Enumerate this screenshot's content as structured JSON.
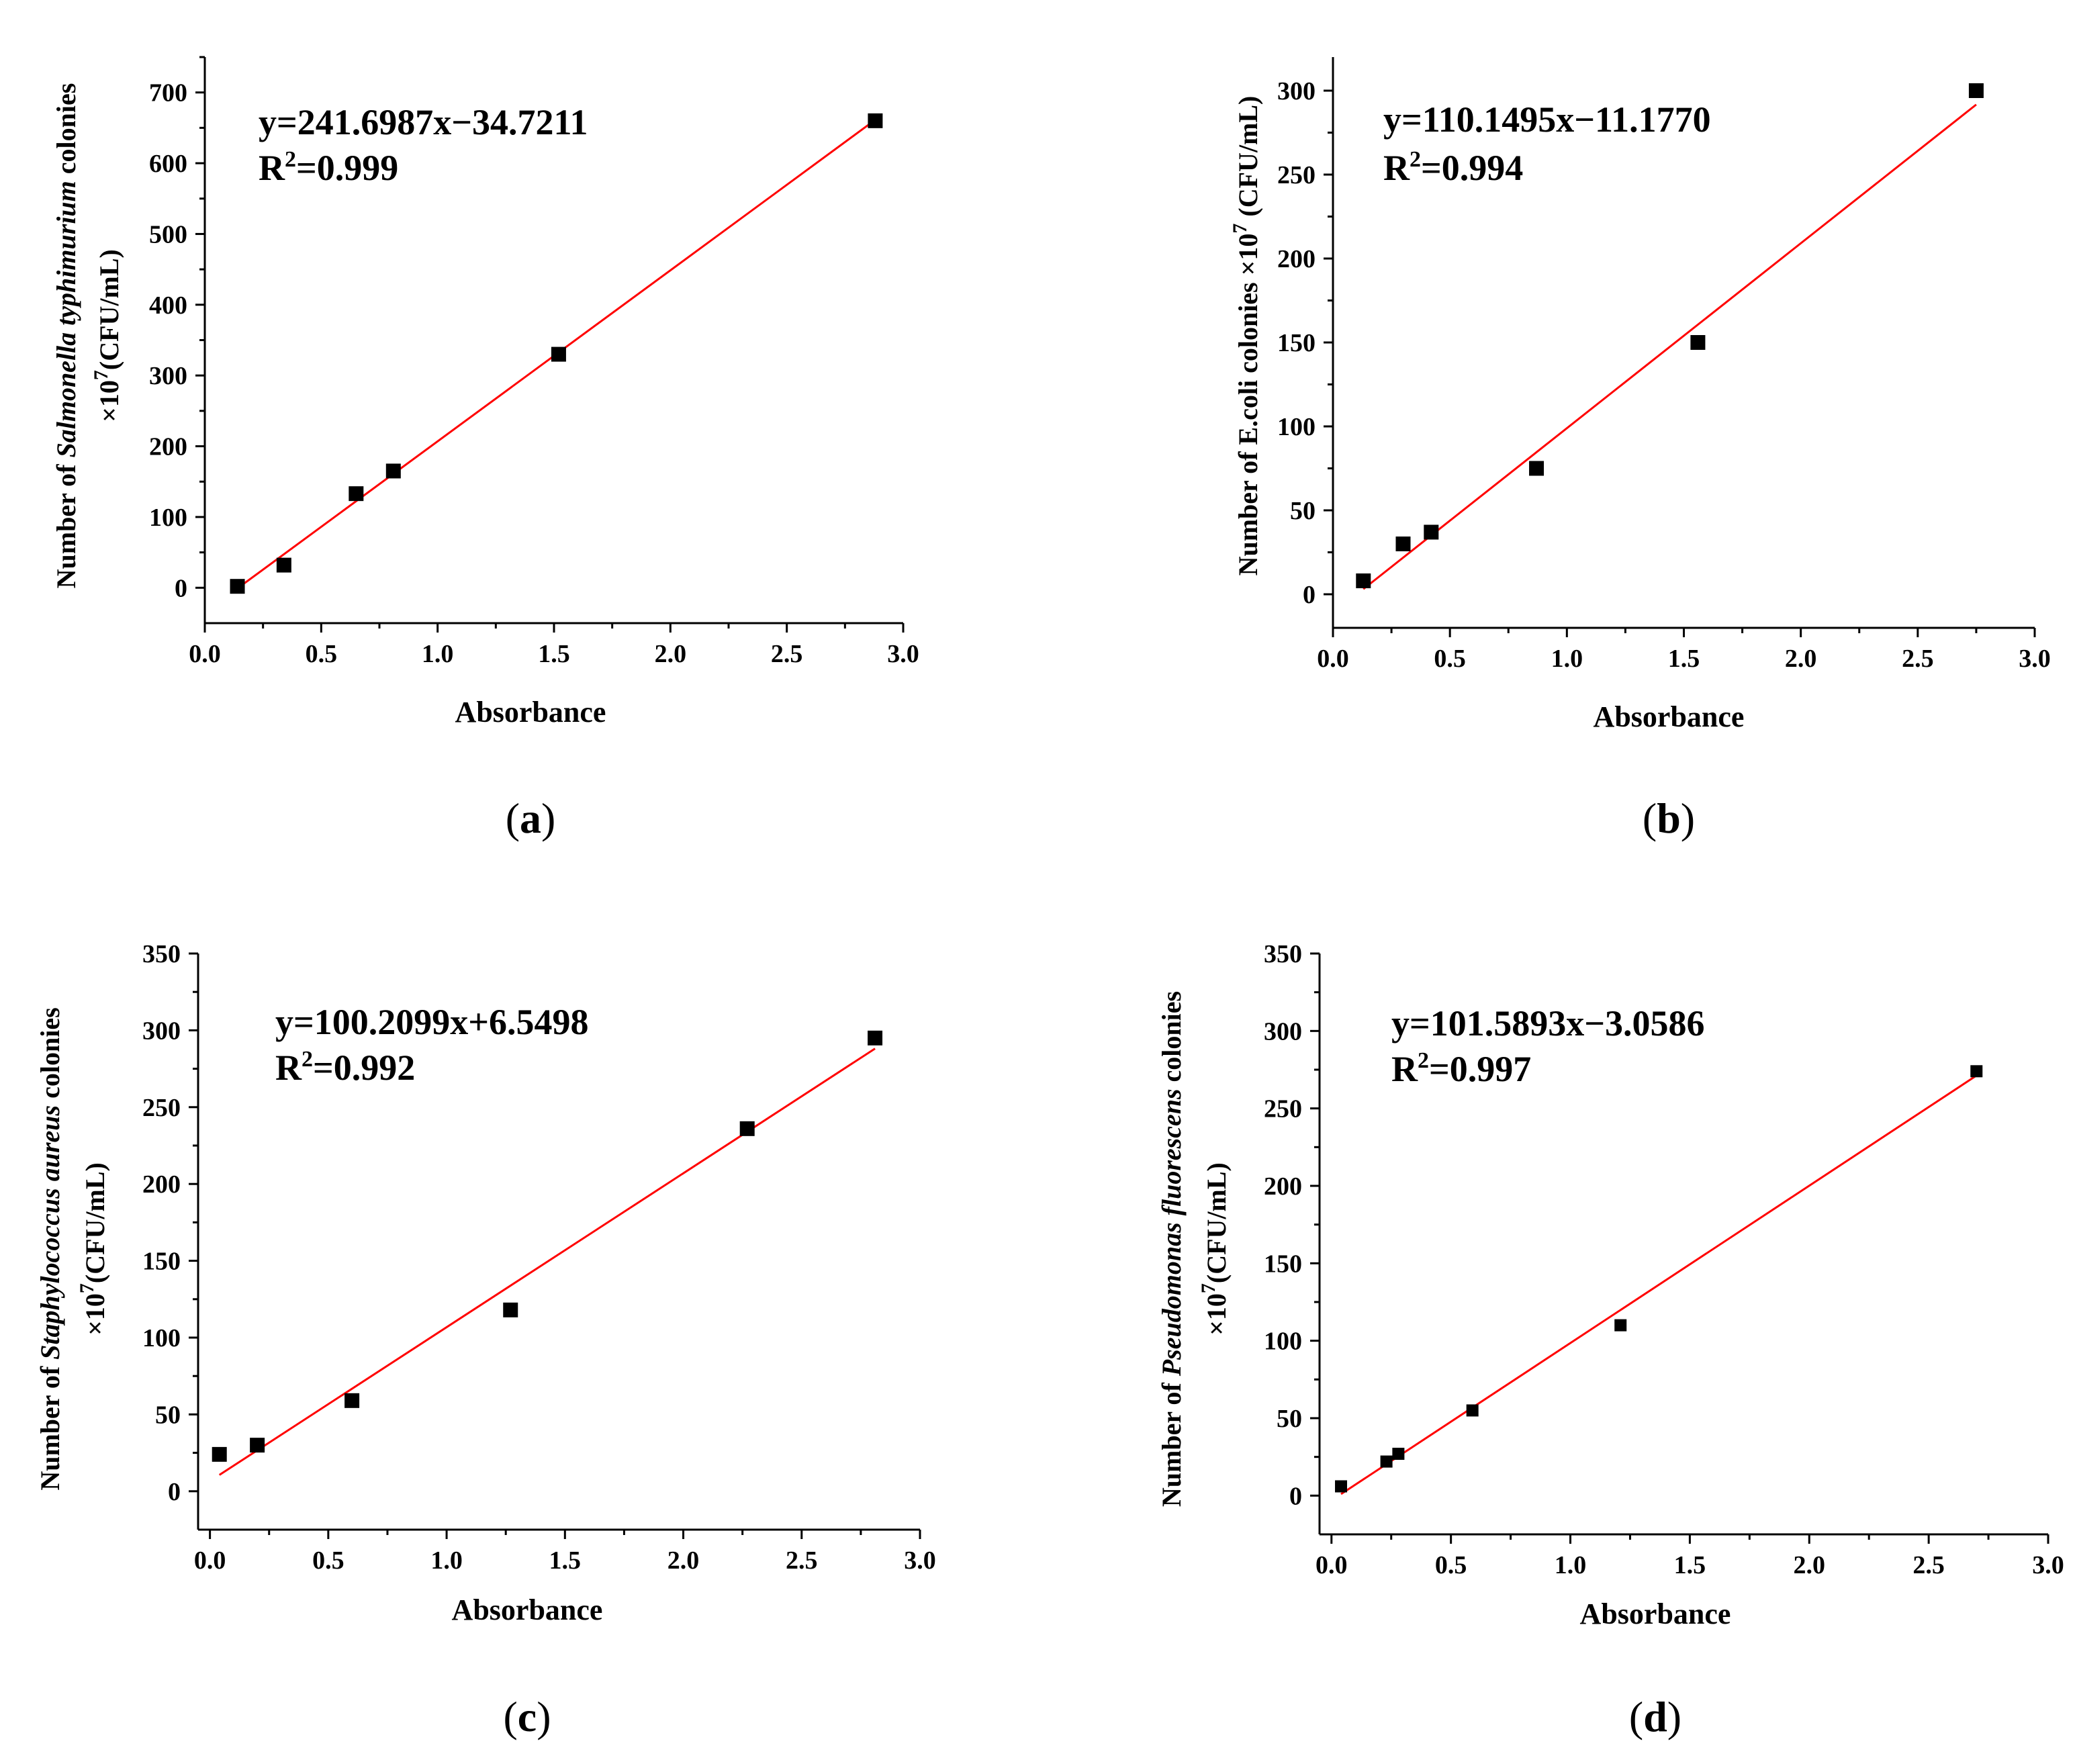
{
  "chart_data": [
    {
      "type": "scatter",
      "panel": "a",
      "panel_label": "a",
      "series": [
        {
          "name": "data",
          "x": [
            0.14,
            0.34,
            0.65,
            0.81,
            1.52,
            2.88
          ],
          "y": [
            2,
            32,
            133,
            165,
            330,
            660
          ]
        },
        {
          "name": "fit",
          "kind": "line",
          "x": [
            0.14,
            2.88
          ],
          "y": [
            -0.9,
            661.3
          ]
        }
      ],
      "xlim": [
        0,
        3.0
      ],
      "ylim": [
        -50,
        750
      ],
      "xticks": [
        0.0,
        0.5,
        1.0,
        1.5,
        2.0,
        2.5,
        3.0
      ],
      "xtick_labels": [
        "0.0",
        "0.5",
        "1.0",
        "1.5",
        "2.0",
        "2.5",
        "3.0"
      ],
      "yticks": [
        0,
        100,
        200,
        300,
        400,
        500,
        600,
        700
      ],
      "ytick_labels": [
        "0",
        "100",
        "200",
        "300",
        "400",
        "500",
        "600",
        "700"
      ],
      "xlabel": "Absorbance",
      "ylabel": {
        "prefix": "Number of ",
        "species": "Salmonella typhimurium",
        "suffix": " colonies",
        "unit_base": "×10",
        "unit_exp": "7",
        "unit_rest": "(CFU/mL)"
      },
      "equation": "y=241.6987x−34.7211",
      "r2_prefix": "R",
      "r2_sup": "2",
      "r2_value": "=0.999"
    },
    {
      "type": "scatter",
      "panel": "b",
      "panel_label": "b",
      "series": [
        {
          "name": "data",
          "x": [
            0.13,
            0.3,
            0.42,
            0.87,
            1.56,
            2.75
          ],
          "y": [
            8,
            30,
            37,
            75,
            150,
            300
          ]
        },
        {
          "name": "fit",
          "kind": "line",
          "x": [
            0.13,
            2.75
          ],
          "y": [
            3.1,
            291.7
          ]
        }
      ],
      "xlim": [
        0,
        3.0
      ],
      "ylim": [
        -20,
        320
      ],
      "xticks": [
        0.0,
        0.5,
        1.0,
        1.5,
        2.0,
        2.5,
        3.0
      ],
      "xtick_labels": [
        "0.0",
        "0.5",
        "1.0",
        "1.5",
        "2.0",
        "2.5",
        "3.0"
      ],
      "yticks": [
        0,
        50,
        100,
        150,
        200,
        250,
        300
      ],
      "ytick_labels": [
        "0",
        "50",
        "100",
        "150",
        "200",
        "250",
        "300"
      ],
      "xlabel": "Absorbance",
      "ylabel_text": "Number of E.coli colonies ×10",
      "ylabel_exp": "7",
      "ylabel_rest": " (CFU/mL)",
      "equation": "y=110.1495x−11.1770",
      "r2_prefix": "R",
      "r2_sup": "2",
      "r2_value": "=0.994"
    },
    {
      "type": "scatter",
      "panel": "c",
      "panel_label": "c",
      "series": [
        {
          "name": "data",
          "x": [
            0.04,
            0.2,
            0.6,
            1.27,
            2.27,
            2.81
          ],
          "y": [
            24,
            30,
            59,
            118,
            236,
            295
          ]
        },
        {
          "name": "fit",
          "kind": "line",
          "x": [
            0.04,
            2.81
          ],
          "y": [
            10.6,
            288.1
          ]
        }
      ],
      "xlim": [
        -0.05,
        3.0
      ],
      "ylim": [
        -25,
        350
      ],
      "xticks": [
        0.0,
        0.5,
        1.0,
        1.5,
        2.0,
        2.5,
        3.0
      ],
      "xtick_labels": [
        "0.0",
        "0.5",
        "1.0",
        "1.5",
        "2.0",
        "2.5",
        "3.0"
      ],
      "yticks": [
        0,
        50,
        100,
        150,
        200,
        250,
        300,
        350
      ],
      "ytick_labels": [
        "0",
        "50",
        "100",
        "150",
        "200",
        "250",
        "300",
        "350"
      ],
      "xlabel": "Absorbance",
      "ylabel": {
        "prefix": "Number of ",
        "species": "Staphylococcus aureus",
        "suffix": " colonies",
        "unit_base": "×10",
        "unit_exp": "7",
        "unit_rest": "(CFU/mL)"
      },
      "equation": "y=100.2099x+6.5498",
      "r2_prefix": "R",
      "r2_sup": "2",
      "r2_value": "=0.992"
    },
    {
      "type": "scatter",
      "panel": "d",
      "panel_label": "d",
      "series": [
        {
          "name": "data",
          "x": [
            0.04,
            0.23,
            0.28,
            0.59,
            1.21,
            2.7
          ],
          "y": [
            6,
            22,
            27,
            55,
            110,
            274
          ]
        },
        {
          "name": "fit",
          "kind": "line",
          "x": [
            0.04,
            2.7
          ],
          "y": [
            1.0,
            271.2
          ]
        }
      ],
      "xlim": [
        -0.05,
        3.0
      ],
      "ylim": [
        -25,
        350
      ],
      "xticks": [
        0.0,
        0.5,
        1.0,
        1.5,
        2.0,
        2.5,
        3.0
      ],
      "xtick_labels": [
        "0.0",
        "0.5",
        "1.0",
        "1.5",
        "2.0",
        "2.5",
        "3.0"
      ],
      "yticks": [
        0,
        50,
        100,
        150,
        200,
        250,
        300,
        350
      ],
      "ytick_labels": [
        "0",
        "50",
        "100",
        "150",
        "200",
        "250",
        "300",
        "350"
      ],
      "xlabel": "Absorbance",
      "ylabel": {
        "prefix": "Number of ",
        "species": "Pseudomonas fluorescens",
        "suffix": " colonies",
        "unit_base": "×10",
        "unit_exp": "7",
        "unit_rest": "(CFU/mL)"
      },
      "equation": "y=101.5893x−3.0586",
      "r2_prefix": "R",
      "r2_sup": "2",
      "r2_value": "=0.997"
    }
  ],
  "colors": {
    "fit_line": "#ff0000",
    "marker": "#000000",
    "axis": "#000000"
  }
}
